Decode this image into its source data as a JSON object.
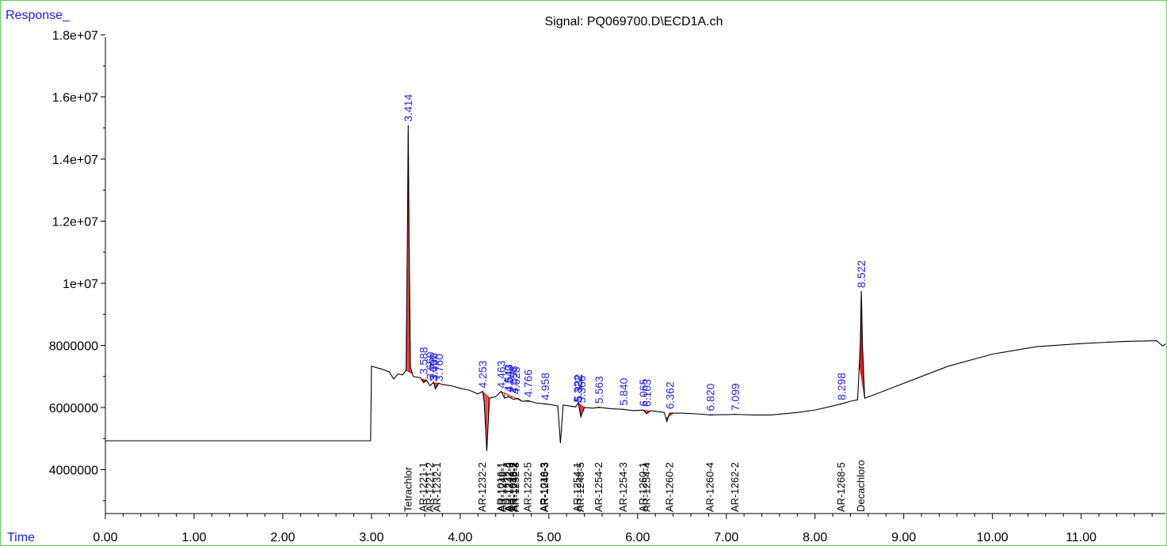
{
  "chart_data": {
    "type": "line",
    "title": "Signal: PQ069700.D\\ECD1A.ch",
    "ylabel": "Response_",
    "xlabel": "Time",
    "xlim": [
      0.0,
      11.95
    ],
    "ylim": [
      2400000,
      18000000
    ],
    "x_ticks": [
      "0.00",
      "1.00",
      "2.00",
      "3.00",
      "4.00",
      "5.00",
      "6.00",
      "7.00",
      "8.00",
      "9.00",
      "10.00",
      "11.00"
    ],
    "x_tick_values": [
      0,
      1,
      2,
      3,
      4,
      5,
      6,
      7,
      8,
      9,
      10,
      11
    ],
    "y_ticks": [
      "4000000",
      "6000000",
      "8000000",
      "1e+07",
      "1.2e+07",
      "1.4e+07",
      "1.6e+07",
      "1.8e+07"
    ],
    "y_tick_values": [
      4000000,
      6000000,
      8000000,
      10000000,
      12000000,
      14000000,
      16000000,
      18000000
    ],
    "trace": [
      [
        0.0,
        4930000
      ],
      [
        2.99,
        4930000
      ],
      [
        3.0,
        7330000
      ],
      [
        3.1,
        7250000
      ],
      [
        3.2,
        7150000
      ],
      [
        3.25,
        6920000
      ],
      [
        3.3,
        7080000
      ],
      [
        3.35,
        7050000
      ],
      [
        3.39,
        7200000
      ],
      [
        3.405,
        11500000
      ],
      [
        3.414,
        15100000
      ],
      [
        3.425,
        11000000
      ],
      [
        3.44,
        7300000
      ],
      [
        3.47,
        7000000
      ],
      [
        3.55,
        6960000
      ],
      [
        3.588,
        6800000
      ],
      [
        3.62,
        6880000
      ],
      [
        3.66,
        6700000
      ],
      [
        3.7,
        6820000
      ],
      [
        3.72,
        6600000
      ],
      [
        3.76,
        6780000
      ],
      [
        3.8,
        6740000
      ],
      [
        3.9,
        6700000
      ],
      [
        4.0,
        6620000
      ],
      [
        4.1,
        6560000
      ],
      [
        4.15,
        6500000
      ],
      [
        4.2,
        6440000
      ],
      [
        4.253,
        6520000
      ],
      [
        4.27,
        6200000
      ],
      [
        4.3,
        4600000
      ],
      [
        4.33,
        6300000
      ],
      [
        4.4,
        6350000
      ],
      [
        4.463,
        6520000
      ],
      [
        4.5,
        6300000
      ],
      [
        4.55,
        6350000
      ],
      [
        4.6,
        6260000
      ],
      [
        4.65,
        6300000
      ],
      [
        4.7,
        6200000
      ],
      [
        4.766,
        6220000
      ],
      [
        4.85,
        6150000
      ],
      [
        4.958,
        6120000
      ],
      [
        5.05,
        6080000
      ],
      [
        5.1,
        6050000
      ],
      [
        5.13,
        4850000
      ],
      [
        5.16,
        6080000
      ],
      [
        5.3,
        6020000
      ],
      [
        5.332,
        6150000
      ],
      [
        5.36,
        5700000
      ],
      [
        5.4,
        6000000
      ],
      [
        5.5,
        5980000
      ],
      [
        5.563,
        6010000
      ],
      [
        5.7,
        5960000
      ],
      [
        5.84,
        5940000
      ],
      [
        5.95,
        5900000
      ],
      [
        6.065,
        5920000
      ],
      [
        6.1,
        5800000
      ],
      [
        6.15,
        5900000
      ],
      [
        6.3,
        5840000
      ],
      [
        6.33,
        5550000
      ],
      [
        6.36,
        5820000
      ],
      [
        6.5,
        5820000
      ],
      [
        6.7,
        5790000
      ],
      [
        6.82,
        5760000
      ],
      [
        6.9,
        5770000
      ],
      [
        7.0,
        5770000
      ],
      [
        7.099,
        5780000
      ],
      [
        7.3,
        5760000
      ],
      [
        7.5,
        5760000
      ],
      [
        7.8,
        5840000
      ],
      [
        8.0,
        5920000
      ],
      [
        8.2,
        6050000
      ],
      [
        8.298,
        6120000
      ],
      [
        8.4,
        6200000
      ],
      [
        8.48,
        6250000
      ],
      [
        8.51,
        8000000
      ],
      [
        8.522,
        9750000
      ],
      [
        8.535,
        8000000
      ],
      [
        8.56,
        6300000
      ],
      [
        8.7,
        6450000
      ],
      [
        9.0,
        6780000
      ],
      [
        9.5,
        7330000
      ],
      [
        10.0,
        7720000
      ],
      [
        10.5,
        7960000
      ],
      [
        11.0,
        8060000
      ],
      [
        11.5,
        8130000
      ],
      [
        11.85,
        8150000
      ],
      [
        11.92,
        7980000
      ],
      [
        11.95,
        8050000
      ]
    ],
    "baseline_fill": [
      [
        3.39,
        3.46
      ],
      [
        3.56,
        3.62
      ],
      [
        3.69,
        3.76
      ],
      [
        4.25,
        4.33
      ],
      [
        4.46,
        4.7
      ],
      [
        4.72,
        4.8
      ],
      [
        4.93,
        4.99
      ],
      [
        5.33,
        5.4
      ],
      [
        5.53,
        5.6
      ],
      [
        5.82,
        5.86
      ],
      [
        6.06,
        6.14
      ],
      [
        6.32,
        6.4
      ],
      [
        6.8,
        6.85
      ],
      [
        7.08,
        7.12
      ],
      [
        8.28,
        8.32
      ],
      [
        8.5,
        8.56
      ]
    ],
    "peak_labels": [
      "3.414",
      "3.588",
      "3.660",
      "3.697",
      "3.700",
      "3.760",
      "4.253",
      "4.463",
      "4.543",
      "4.549",
      "4.598",
      "4.628",
      "4.766",
      "4.958",
      "5.322",
      "5.332",
      "5.366",
      "5.563",
      "5.840",
      "6.065",
      "6.103",
      "6.362",
      "6.820",
      "7.099",
      "8.298",
      "8.522"
    ],
    "peak_label_times": [
      3.414,
      3.588,
      3.66,
      3.697,
      3.7,
      3.76,
      4.253,
      4.463,
      4.543,
      4.549,
      4.598,
      4.628,
      4.766,
      4.958,
      5.322,
      5.332,
      5.366,
      5.563,
      5.84,
      6.065,
      6.103,
      6.362,
      6.82,
      7.099,
      8.298,
      8.522
    ],
    "peak_label_heights": [
      15100000,
      6960000,
      6800000,
      6740000,
      6760000,
      6740000,
      6520000,
      6520000,
      6400000,
      6380000,
      6350000,
      6320000,
      6230000,
      6130000,
      6060000,
      6090000,
      6040000,
      6020000,
      5960000,
      5930000,
      5920000,
      5840000,
      5780000,
      5790000,
      6130000,
      9750000
    ],
    "compound_labels": [
      "Tetrachlor",
      "AR-1221-1",
      "AR-1221-2",
      "AR-1232-1",
      "AR-1232-2",
      "AR-1016-1",
      "AR-1248-1",
      "AR-1232-4",
      "AR-1242-3",
      "AR-1016-2",
      "AR-1248-2",
      "AR-1232-3",
      "AR-1232-5",
      "AR-1016-3",
      "AR-1248-3",
      "AR-1254-1",
      "AR-1248-5",
      "AR-1254-2",
      "AR-1254-3",
      "AR-1260-1",
      "AR-1254-4",
      "AR-1260-2",
      "AR-1260-4",
      "AR-1262-2",
      "AR-1268-5",
      "Decachloro"
    ],
    "compound_times": [
      3.414,
      3.588,
      3.66,
      3.74,
      4.253,
      4.463,
      4.48,
      4.543,
      4.56,
      4.598,
      4.61,
      4.628,
      4.766,
      4.95,
      4.958,
      5.322,
      5.36,
      5.563,
      5.84,
      6.065,
      6.103,
      6.362,
      6.82,
      7.099,
      8.298,
      8.522
    ],
    "colors": {
      "trace": "#000000",
      "baseline": "#dd0000",
      "peak_label": "#2222ee",
      "axis_label": "#1a1aff",
      "frame": "#5ad35a"
    }
  }
}
